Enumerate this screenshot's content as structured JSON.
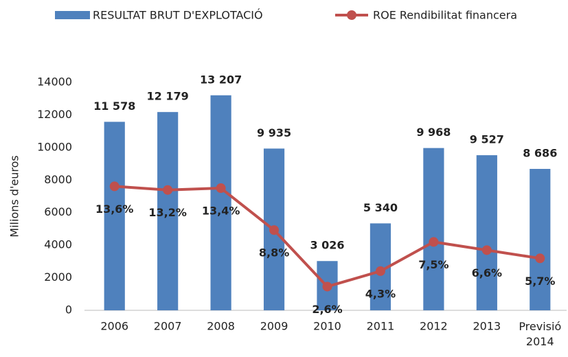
{
  "chart_data": {
    "type": "bar_line",
    "y_axis_label": "Milions d'euros",
    "categories": [
      "2006",
      "2007",
      "2008",
      "2009",
      "2010",
      "2011",
      "2012",
      "2013",
      "Previsió\n2014"
    ],
    "series": [
      {
        "name": "RESULTAT BRUT D'EXPLOTACIÓ",
        "type": "bar",
        "color": "#4f81bd",
        "values": [
          11578,
          12179,
          13207,
          9935,
          3026,
          5340,
          9968,
          9527,
          8686
        ],
        "value_labels": [
          "11 578",
          "12 179",
          "13 207",
          "9 935",
          "3 026",
          "5 340",
          "9 968",
          "9 527",
          "8 686"
        ]
      },
      {
        "name": "ROE Rendibilitat financera",
        "type": "line",
        "axis": "y2",
        "color": "#c0504d",
        "values": [
          13.6,
          13.2,
          13.4,
          8.8,
          2.6,
          4.3,
          7.5,
          6.6,
          5.7
        ],
        "value_labels": [
          "13,6%",
          "13,2%",
          "13,4%",
          "8,8%",
          "2,6%",
          "4,3%",
          "7,5%",
          "6,6%",
          "5,7%"
        ]
      }
    ],
    "ylim": [
      0,
      14000
    ],
    "yticks": [
      0,
      2000,
      4000,
      6000,
      8000,
      10000,
      12000,
      14000
    ],
    "y2lim": [
      0,
      25
    ],
    "legend": "top",
    "grid": false
  }
}
